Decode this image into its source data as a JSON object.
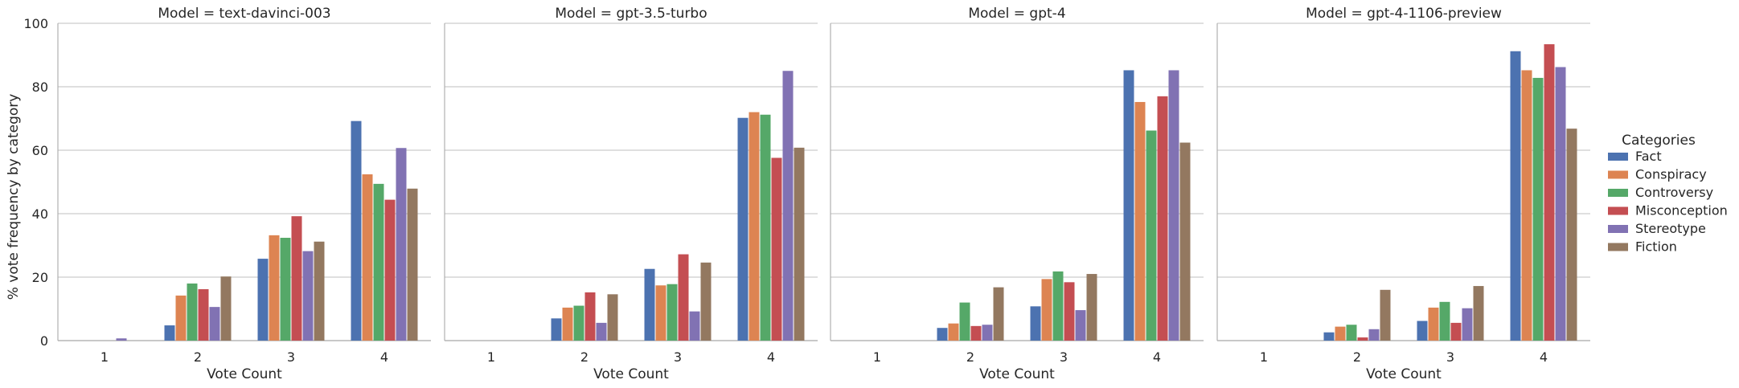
{
  "chart_data": {
    "type": "bar",
    "ylabel": "% vote frequency by category",
    "xlabel": "Vote Count",
    "ylim": [
      0,
      100
    ],
    "yticks": [
      0,
      20,
      40,
      60,
      80,
      100
    ],
    "grid": "horizontal",
    "legend_title": "Categories",
    "legend_placement": "right",
    "categories": [
      "1",
      "2",
      "3",
      "4"
    ],
    "series_meta": [
      {
        "name": "Fact",
        "color": "#4c72b0"
      },
      {
        "name": "Conspiracy",
        "color": "#dd8452"
      },
      {
        "name": "Controversy",
        "color": "#55a868"
      },
      {
        "name": "Misconception",
        "color": "#c44e52"
      },
      {
        "name": "Stereotype",
        "color": "#8172b3"
      },
      {
        "name": "Fiction",
        "color": "#937860"
      }
    ],
    "facets": [
      {
        "title": "Model = text-davinci-003",
        "series": [
          {
            "name": "Fact",
            "values": [
              0,
              4.8,
              25.8,
              69.2
            ]
          },
          {
            "name": "Conspiracy",
            "values": [
              0,
              14.2,
              33.2,
              52.4
            ]
          },
          {
            "name": "Controversy",
            "values": [
              0,
              18.0,
              32.4,
              49.4
            ]
          },
          {
            "name": "Misconception",
            "values": [
              0,
              16.2,
              39.2,
              44.4
            ]
          },
          {
            "name": "Stereotype",
            "values": [
              0.7,
              10.6,
              28.2,
              60.7
            ]
          },
          {
            "name": "Fiction",
            "values": [
              0,
              20.2,
              31.2,
              47.9
            ]
          }
        ]
      },
      {
        "title": "Model = gpt-3.5-turbo",
        "series": [
          {
            "name": "Fact",
            "values": [
              0,
              7.0,
              22.6,
              70.2
            ]
          },
          {
            "name": "Conspiracy",
            "values": [
              0,
              10.4,
              17.4,
              72.0
            ]
          },
          {
            "name": "Controversy",
            "values": [
              0,
              11.0,
              17.8,
              71.2
            ]
          },
          {
            "name": "Misconception",
            "values": [
              0,
              15.2,
              27.2,
              57.6
            ]
          },
          {
            "name": "Stereotype",
            "values": [
              0,
              5.6,
              9.2,
              85.0
            ]
          },
          {
            "name": "Fiction",
            "values": [
              0,
              14.6,
              24.6,
              60.8
            ]
          }
        ]
      },
      {
        "title": "Model = gpt-4",
        "series": [
          {
            "name": "Fact",
            "values": [
              0,
              4.0,
              10.8,
              85.2
            ]
          },
          {
            "name": "Conspiracy",
            "values": [
              0,
              5.4,
              19.4,
              75.2
            ]
          },
          {
            "name": "Controversy",
            "values": [
              0,
              12.0,
              21.8,
              66.2
            ]
          },
          {
            "name": "Misconception",
            "values": [
              0,
              4.6,
              18.4,
              77.0
            ]
          },
          {
            "name": "Stereotype",
            "values": [
              0,
              5.0,
              9.6,
              85.2
            ]
          },
          {
            "name": "Fiction",
            "values": [
              0,
              16.8,
              21.0,
              62.4
            ]
          }
        ]
      },
      {
        "title": "Model = gpt-4-1106-preview",
        "series": [
          {
            "name": "Fact",
            "values": [
              0,
              2.6,
              6.2,
              91.2
            ]
          },
          {
            "name": "Conspiracy",
            "values": [
              0,
              4.4,
              10.4,
              85.2
            ]
          },
          {
            "name": "Controversy",
            "values": [
              0,
              5.0,
              12.2,
              82.8
            ]
          },
          {
            "name": "Misconception",
            "values": [
              0,
              1.0,
              5.6,
              93.4
            ]
          },
          {
            "name": "Stereotype",
            "values": [
              0,
              3.6,
              10.2,
              86.2
            ]
          },
          {
            "name": "Fiction",
            "values": [
              0,
              16.0,
              17.2,
              66.8
            ]
          }
        ]
      }
    ]
  }
}
